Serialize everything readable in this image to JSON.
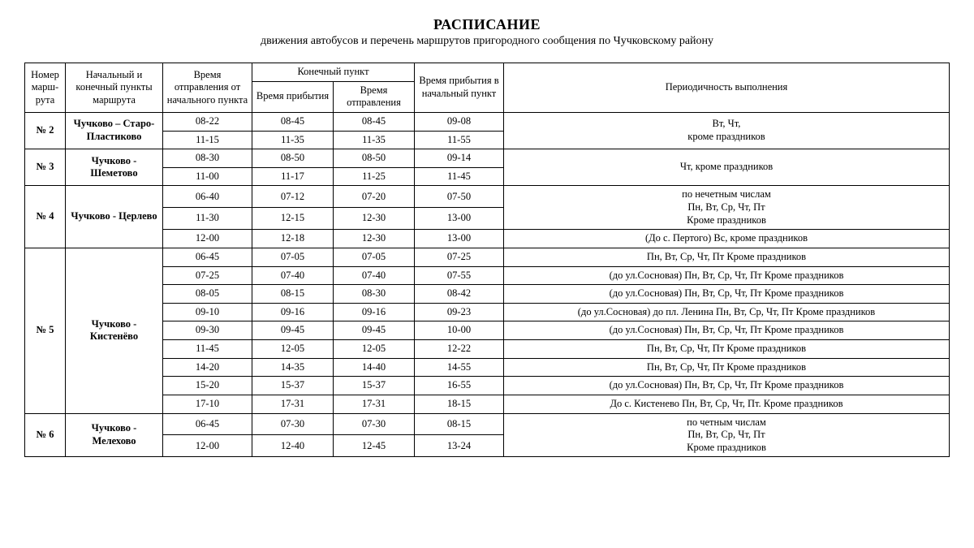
{
  "title": "РАСПИСАНИЕ",
  "subtitle": "движения автобусов и перечень маршрутов пригородного сообщения по Чучковскому району",
  "headers": {
    "num": "Номер марш-рута",
    "route": "Начальный и конечный пункты маршрута",
    "departure": "Время отправления от начального пункта",
    "endpoint": "Конечный пункт",
    "arrive": "Время прибытия",
    "depart2": "Время отправления",
    "back": "Время прибытия в начальный пункт",
    "freq": "Периодичность выполнения"
  },
  "routes": [
    {
      "num": "№ 2",
      "name": "Чучково – Старо-Пластиково",
      "rows": [
        {
          "dep": "08-22",
          "arr": "08-45",
          "dep2": "08-45",
          "back": "09-08"
        },
        {
          "dep": "11-15",
          "arr": "11-35",
          "dep2": "11-35",
          "back": "11-55"
        }
      ],
      "freqGroups": [
        {
          "span": 2,
          "text": "Вт, Чт,\nкроме праздников"
        }
      ]
    },
    {
      "num": "№ 3",
      "name": "Чучково - Шеметово",
      "rows": [
        {
          "dep": "08-30",
          "arr": "08-50",
          "dep2": "08-50",
          "back": "09-14"
        },
        {
          "dep": "11-00",
          "arr": "11-17",
          "dep2": "11-25",
          "back": "11-45"
        }
      ],
      "freqGroups": [
        {
          "span": 2,
          "text": "Чт,  кроме праздников"
        }
      ]
    },
    {
      "num": "№ 4",
      "name": "Чучково - Церлево",
      "rows": [
        {
          "dep": "06-40",
          "arr": "07-12",
          "dep2": "07-20",
          "back": "07-50"
        },
        {
          "dep": "11-30",
          "arr": "12-15",
          "dep2": "12-30",
          "back": "13-00"
        },
        {
          "dep": "12-00",
          "arr": "12-18",
          "dep2": "12-30",
          "back": "13-00"
        }
      ],
      "freqGroups": [
        {
          "span": 2,
          "text": "по нечетным числам\nПн, Вт, Ср, Чт, Пт\nКроме праздников"
        },
        {
          "span": 1,
          "text": "(До с. Пертого)     Вс,    кроме праздников"
        }
      ]
    },
    {
      "num": "№ 5",
      "name": "Чучково - Кистенёво",
      "rows": [
        {
          "dep": "06-45",
          "arr": "07-05",
          "dep2": "07-05",
          "back": "07-25"
        },
        {
          "dep": "07-25",
          "arr": "07-40",
          "dep2": "07-40",
          "back": "07-55"
        },
        {
          "dep": "08-05",
          "arr": "08-15",
          "dep2": "08-30",
          "back": "08-42"
        },
        {
          "dep": "09-10",
          "arr": "09-16",
          "dep2": "09-16",
          "back": "09-23"
        },
        {
          "dep": "09-30",
          "arr": "09-45",
          "dep2": "09-45",
          "back": "10-00"
        },
        {
          "dep": "11-45",
          "arr": "12-05",
          "dep2": "12-05",
          "back": "12-22"
        },
        {
          "dep": "14-20",
          "arr": "14-35",
          "dep2": "14-40",
          "back": "14-55"
        },
        {
          "dep": "15-20",
          "arr": "15-37",
          "dep2": "15-37",
          "back": "16-55"
        },
        {
          "dep": "17-10",
          "arr": "17-31",
          "dep2": "17-31",
          "back": "18-15"
        }
      ],
      "freqGroups": [
        {
          "span": 1,
          "text": "Пн, Вт, Ср, Чт, Пт Кроме праздников"
        },
        {
          "span": 1,
          "text": "(до ул.Сосновая)     Пн, Вт, Ср, Чт, Пт Кроме праздников"
        },
        {
          "span": 1,
          "text": "(до ул.Сосновая)     Пн, Вт, Ср, Чт, Пт Кроме праздников"
        },
        {
          "span": 1,
          "text": "(до ул.Сосновая) до пл. Ленина     Пн, Вт, Ср, Чт, Пт Кроме праздников"
        },
        {
          "span": 1,
          "text": "(до ул.Сосновая)     Пн, Вт, Ср, Чт, Пт Кроме праздников"
        },
        {
          "span": 1,
          "text": "Пн, Вт, Ср, Чт, Пт Кроме праздников"
        },
        {
          "span": 1,
          "text": "Пн, Вт, Ср, Чт, Пт Кроме праздников"
        },
        {
          "span": 1,
          "text": "(до ул.Сосновая)     Пн, Вт, Ср, Чт, Пт Кроме праздников"
        },
        {
          "span": 1,
          "text": "До с. Кистенево Пн, Вт, Ср, Чт, Пт.  Кроме праздников"
        }
      ]
    },
    {
      "num": "№ 6",
      "name": "Чучково - Мелехово",
      "rows": [
        {
          "dep": "06-45",
          "arr": "07-30",
          "dep2": "07-30",
          "back": "08-15"
        },
        {
          "dep": "12-00",
          "arr": "12-40",
          "dep2": "12-45",
          "back": "13-24"
        }
      ],
      "freqGroups": [
        {
          "span": 2,
          "text": "по четным числам\nПн, Вт, Ср, Чт, Пт\nКроме праздников"
        }
      ]
    }
  ]
}
